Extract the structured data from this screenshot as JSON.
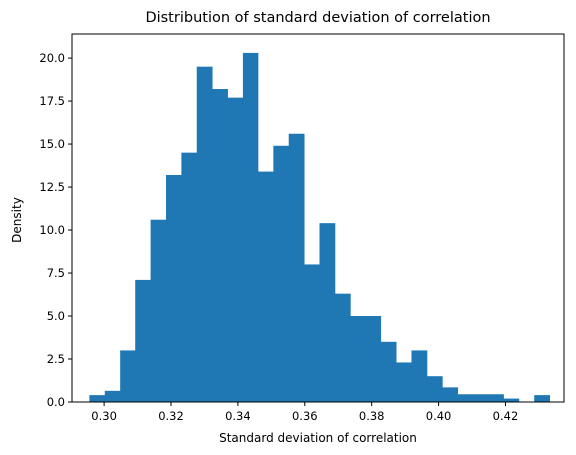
{
  "chart_data": {
    "type": "bar",
    "title": "Distribution of standard deviation of correlation",
    "xlabel": "Standard deviation of correlation",
    "ylabel": "Density",
    "xlim": [
      0.2904,
      0.4375
    ],
    "ylim": [
      0,
      21.4
    ],
    "x_ticks": [
      0.3,
      0.32,
      0.34,
      0.36,
      0.38,
      0.4,
      0.42
    ],
    "x_tick_labels": [
      "0.30",
      "0.32",
      "0.34",
      "0.36",
      "0.38",
      "0.40",
      "0.42"
    ],
    "y_ticks": [
      0,
      2.5,
      5,
      7.5,
      10,
      12.5,
      15,
      17.5,
      20
    ],
    "y_tick_labels": [
      "0.0",
      "2.5",
      "5.0",
      "7.5",
      "10.0",
      "12.5",
      "15.0",
      "17.5",
      "20.0"
    ],
    "bin_edges": [
      0.2956,
      0.3002,
      0.3048,
      0.3093,
      0.3139,
      0.3185,
      0.3231,
      0.3277,
      0.3323,
      0.3369,
      0.3415,
      0.346,
      0.3506,
      0.3552,
      0.3598,
      0.3644,
      0.369,
      0.3736,
      0.3782,
      0.3827,
      0.3873,
      0.3919,
      0.3965,
      0.4011,
      0.4057,
      0.4103,
      0.4149,
      0.4194,
      0.424,
      0.4286,
      0.4332
    ],
    "values": [
      0.4,
      0.65,
      3.0,
      7.1,
      10.6,
      13.2,
      14.5,
      19.5,
      18.2,
      17.7,
      20.3,
      13.4,
      14.9,
      15.6,
      8.0,
      10.4,
      6.3,
      5.0,
      5.0,
      3.5,
      2.3,
      3.0,
      1.5,
      0.85,
      0.45,
      0.45,
      0.45,
      0.2,
      0.0,
      0.4
    ],
    "color": "#1f77b4",
    "grid": false,
    "legend": "none"
  }
}
